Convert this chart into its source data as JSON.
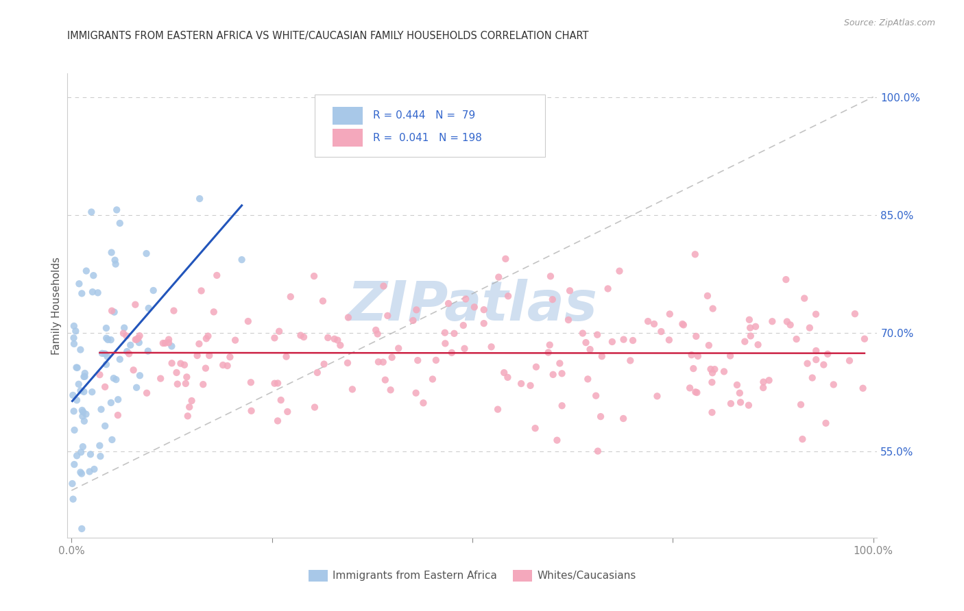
{
  "title": "IMMIGRANTS FROM EASTERN AFRICA VS WHITE/CAUCASIAN FAMILY HOUSEHOLDS CORRELATION CHART",
  "source": "Source: ZipAtlas.com",
  "ylabel": "Family Households",
  "blue_R": 0.444,
  "blue_N": 79,
  "pink_R": 0.041,
  "pink_N": 198,
  "blue_color": "#a8c8e8",
  "pink_color": "#f4a8bc",
  "blue_line_color": "#2255bb",
  "pink_line_color": "#cc2244",
  "diag_color": "#aaaaaa",
  "title_color": "#333333",
  "axis_label_color": "#3366cc",
  "watermark_color": "#d0dff0",
  "watermark_text": "ZIPatlas",
  "background_color": "#ffffff",
  "grid_color": "#cccccc",
  "ytick_labels": [
    "55.0%",
    "70.0%",
    "85.0%",
    "100.0%"
  ],
  "ytick_values": [
    0.55,
    0.7,
    0.85,
    1.0
  ],
  "ylim": [
    0.44,
    1.03
  ],
  "xlim": [
    -0.005,
    1.005
  ]
}
